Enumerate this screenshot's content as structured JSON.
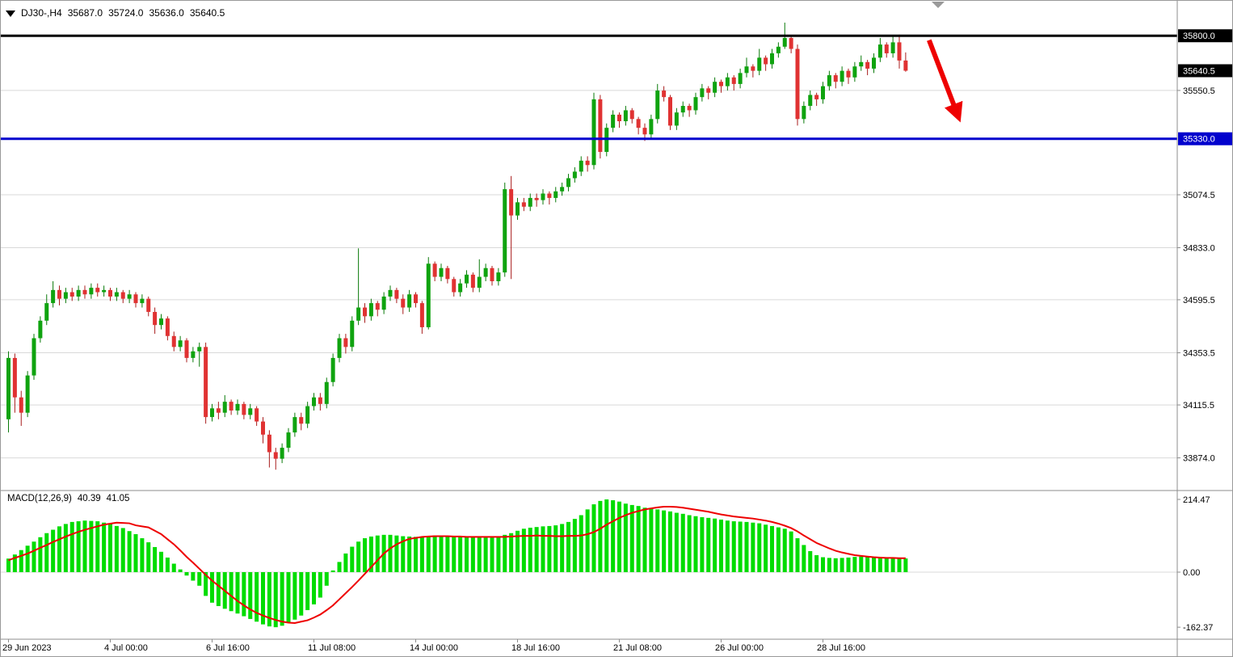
{
  "header": {
    "symbol": "DJ30-,H4",
    "open": "35687.0",
    "high": "35724.0",
    "low": "35636.0",
    "close": "35640.5"
  },
  "macd": {
    "label": "MACD(12,26,9)",
    "value_macd": "40.39",
    "value_signal": "41.05"
  },
  "colors": {
    "up": "#0fa30f",
    "up_wick": "#0a7a0a",
    "down": "#e03232",
    "down_wick": "#a81d1d",
    "grid": "#d9d9d9",
    "separator": "#8c8c8c",
    "axis_text": "#000000",
    "macd_hist": "#00dc00",
    "macd_signal": "#ee0000",
    "resistance": "#000000",
    "support": "#0202cd",
    "arrow": "#ee0000",
    "badge_text": "#ffffff",
    "shift_marker": "#9a9a9a"
  },
  "price_axis": {
    "plain_labels": [
      {
        "text": "35550.5",
        "value": 35550.5
      },
      {
        "text": "35074.5",
        "value": 35074.5
      },
      {
        "text": "34833.0",
        "value": 34833.0
      },
      {
        "text": "34595.5",
        "value": 34595.5
      },
      {
        "text": "34353.5",
        "value": 34353.5
      },
      {
        "text": "34115.5",
        "value": 34115.5
      },
      {
        "text": "33874.0",
        "value": 33874.0
      }
    ],
    "badges": [
      {
        "text": "35800.0",
        "value": 35800.0,
        "bg": "#000000"
      },
      {
        "text": "35640.5",
        "value": 35640.5,
        "bg": "#000000"
      },
      {
        "text": "35330.0",
        "value": 35330.0,
        "bg": "#0202cd"
      }
    ]
  },
  "chart_data": {
    "type": "candlestick",
    "symbol": "DJ30-",
    "timeframe": "H4",
    "current_ohlc": {
      "open": 35687.0,
      "high": 35724.0,
      "low": 35636.0,
      "close": 35640.5
    },
    "price_gridlines": [
      35550.5,
      35074.5,
      34833.0,
      34595.5,
      34353.5,
      34115.5,
      33874.0
    ],
    "hlines": [
      {
        "name": "resistance",
        "price": 35800.0,
        "color": "#000000",
        "label": "35800.0"
      },
      {
        "name": "support",
        "price": 35330.0,
        "color": "#0202cd",
        "label": "35330.0"
      }
    ],
    "annotations": [
      {
        "type": "arrow-down-right",
        "from_bar": 145,
        "from_price": 35780,
        "to_bar": 150,
        "to_price": 35440,
        "color": "#ee0000"
      }
    ],
    "time_labels": [
      {
        "text": "29 Jun 2023",
        "bar": 0
      },
      {
        "text": "4 Jul 00:00",
        "bar": 16
      },
      {
        "text": "6 Jul 16:00",
        "bar": 32
      },
      {
        "text": "11 Jul 08:00",
        "bar": 48
      },
      {
        "text": "14 Jul 00:00",
        "bar": 64
      },
      {
        "text": "18 Jul 16:00",
        "bar": 80
      },
      {
        "text": "21 Jul 08:00",
        "bar": 96
      },
      {
        "text": "26 Jul 00:00",
        "bar": 112
      },
      {
        "text": "28 Jul 16:00",
        "bar": 128
      }
    ],
    "ohlc": [
      [
        34050,
        34360,
        33990,
        34330
      ],
      [
        34330,
        34350,
        34080,
        34150
      ],
      [
        34150,
        34180,
        34020,
        34080
      ],
      [
        34080,
        34270,
        34060,
        34250
      ],
      [
        34250,
        34440,
        34230,
        34420
      ],
      [
        34420,
        34520,
        34400,
        34500
      ],
      [
        34500,
        34620,
        34480,
        34580
      ],
      [
        34580,
        34680,
        34560,
        34640
      ],
      [
        34640,
        34660,
        34570,
        34600
      ],
      [
        34600,
        34650,
        34580,
        34630
      ],
      [
        34630,
        34650,
        34590,
        34610
      ],
      [
        34610,
        34660,
        34590,
        34640
      ],
      [
        34640,
        34660,
        34600,
        34620
      ],
      [
        34620,
        34670,
        34600,
        34650
      ],
      [
        34650,
        34670,
        34610,
        34630
      ],
      [
        34630,
        34660,
        34610,
        34640
      ],
      [
        34640,
        34650,
        34590,
        34610
      ],
      [
        34610,
        34650,
        34590,
        34630
      ],
      [
        34630,
        34640,
        34580,
        34600
      ],
      [
        34600,
        34640,
        34580,
        34620
      ],
      [
        34620,
        34630,
        34560,
        34580
      ],
      [
        34580,
        34620,
        34560,
        34600
      ],
      [
        34600,
        34610,
        34520,
        34540
      ],
      [
        34540,
        34560,
        34440,
        34480
      ],
      [
        34480,
        34530,
        34460,
        34510
      ],
      [
        34510,
        34520,
        34410,
        34430
      ],
      [
        34430,
        34450,
        34360,
        34380
      ],
      [
        34380,
        34430,
        34360,
        34410
      ],
      [
        34410,
        34420,
        34310,
        34330
      ],
      [
        34330,
        34380,
        34310,
        34360
      ],
      [
        34360,
        34400,
        34290,
        34380
      ],
      [
        34380,
        34400,
        34030,
        34060
      ],
      [
        34060,
        34120,
        34040,
        34100
      ],
      [
        34100,
        34130,
        34050,
        34080
      ],
      [
        34080,
        34160,
        34060,
        34130
      ],
      [
        34130,
        34140,
        34070,
        34090
      ],
      [
        34090,
        34140,
        34070,
        34120
      ],
      [
        34120,
        34130,
        34050,
        34070
      ],
      [
        34070,
        34120,
        34050,
        34100
      ],
      [
        34100,
        34110,
        34020,
        34040
      ],
      [
        34040,
        34060,
        33940,
        33980
      ],
      [
        33980,
        34000,
        33830,
        33900
      ],
      [
        33900,
        33920,
        33820,
        33870
      ],
      [
        33870,
        33940,
        33850,
        33920
      ],
      [
        33920,
        34010,
        33900,
        33990
      ],
      [
        33990,
        34080,
        33970,
        34060
      ],
      [
        34060,
        34080,
        34000,
        34030
      ],
      [
        34030,
        34130,
        34010,
        34110
      ],
      [
        34110,
        34170,
        34090,
        34150
      ],
      [
        34150,
        34170,
        34090,
        34120
      ],
      [
        34120,
        34240,
        34100,
        34220
      ],
      [
        34220,
        34350,
        34200,
        34330
      ],
      [
        34330,
        34440,
        34310,
        34420
      ],
      [
        34420,
        34440,
        34350,
        34380
      ],
      [
        34380,
        34520,
        34360,
        34500
      ],
      [
        34500,
        34830,
        34480,
        34560
      ],
      [
        34560,
        34580,
        34490,
        34520
      ],
      [
        34520,
        34600,
        34500,
        34580
      ],
      [
        34580,
        34590,
        34520,
        34550
      ],
      [
        34550,
        34630,
        34530,
        34610
      ],
      [
        34610,
        34660,
        34590,
        34640
      ],
      [
        34640,
        34650,
        34580,
        34600
      ],
      [
        34600,
        34620,
        34530,
        34560
      ],
      [
        34560,
        34640,
        34540,
        34620
      ],
      [
        34620,
        34630,
        34560,
        34580
      ],
      [
        34580,
        34590,
        34440,
        34470
      ],
      [
        34470,
        34790,
        34460,
        34760
      ],
      [
        34760,
        34770,
        34680,
        34700
      ],
      [
        34700,
        34760,
        34680,
        34740
      ],
      [
        34740,
        34750,
        34670,
        34690
      ],
      [
        34690,
        34700,
        34610,
        34630
      ],
      [
        34630,
        34690,
        34610,
        34670
      ],
      [
        34670,
        34730,
        34650,
        34710
      ],
      [
        34710,
        34720,
        34630,
        34650
      ],
      [
        34650,
        34780,
        34630,
        34700
      ],
      [
        34700,
        34760,
        34680,
        34740
      ],
      [
        34740,
        34750,
        34660,
        34680
      ],
      [
        34680,
        34740,
        34660,
        34720
      ],
      [
        34720,
        35130,
        34700,
        35100
      ],
      [
        35100,
        35160,
        34690,
        34980
      ],
      [
        34980,
        35060,
        34960,
        35040
      ],
      [
        35040,
        35060,
        35000,
        35020
      ],
      [
        35020,
        35080,
        35000,
        35060
      ],
      [
        35060,
        35080,
        35020,
        35050
      ],
      [
        35050,
        35100,
        35030,
        35080
      ],
      [
        35080,
        35090,
        35030,
        35060
      ],
      [
        35060,
        35110,
        35040,
        35090
      ],
      [
        35090,
        35130,
        35070,
        35110
      ],
      [
        35110,
        35170,
        35090,
        35150
      ],
      [
        35150,
        35200,
        35130,
        35180
      ],
      [
        35180,
        35250,
        35160,
        35230
      ],
      [
        35230,
        35250,
        35180,
        35210
      ],
      [
        35210,
        35540,
        35190,
        35510
      ],
      [
        35510,
        35530,
        35240,
        35270
      ],
      [
        35270,
        35400,
        35250,
        35380
      ],
      [
        35380,
        35460,
        35360,
        35440
      ],
      [
        35440,
        35450,
        35380,
        35410
      ],
      [
        35410,
        35480,
        35390,
        35460
      ],
      [
        35460,
        35470,
        35400,
        35420
      ],
      [
        35420,
        35430,
        35350,
        35380
      ],
      [
        35380,
        35400,
        35320,
        35350
      ],
      [
        35350,
        35440,
        35330,
        35420
      ],
      [
        35420,
        35580,
        35400,
        35550
      ],
      [
        35550,
        35570,
        35500,
        35520
      ],
      [
        35520,
        35530,
        35370,
        35390
      ],
      [
        35390,
        35470,
        35370,
        35450
      ],
      [
        35450,
        35500,
        35430,
        35480
      ],
      [
        35480,
        35490,
        35430,
        35460
      ],
      [
        35460,
        35540,
        35440,
        35520
      ],
      [
        35520,
        35580,
        35500,
        35560
      ],
      [
        35560,
        35570,
        35510,
        35540
      ],
      [
        35540,
        35610,
        35520,
        35590
      ],
      [
        35590,
        35600,
        35540,
        35570
      ],
      [
        35570,
        35630,
        35550,
        35610
      ],
      [
        35610,
        35620,
        35550,
        35580
      ],
      [
        35580,
        35650,
        35560,
        35630
      ],
      [
        35630,
        35700,
        35610,
        35660
      ],
      [
        35660,
        35670,
        35610,
        35640
      ],
      [
        35640,
        35740,
        35620,
        35700
      ],
      [
        35700,
        35710,
        35640,
        35670
      ],
      [
        35670,
        35740,
        35650,
        35720
      ],
      [
        35720,
        35770,
        35700,
        35750
      ],
      [
        35750,
        35860,
        35740,
        35790
      ],
      [
        35790,
        35800,
        35720,
        35740
      ],
      [
        35740,
        35760,
        35390,
        35420
      ],
      [
        35420,
        35500,
        35400,
        35480
      ],
      [
        35480,
        35550,
        35460,
        35530
      ],
      [
        35530,
        35540,
        35480,
        35510
      ],
      [
        35510,
        35590,
        35490,
        35570
      ],
      [
        35570,
        35640,
        35550,
        35620
      ],
      [
        35620,
        35630,
        35560,
        35590
      ],
      [
        35590,
        35660,
        35570,
        35640
      ],
      [
        35640,
        35650,
        35580,
        35610
      ],
      [
        35610,
        35680,
        35590,
        35660
      ],
      [
        35660,
        35710,
        35640,
        35680
      ],
      [
        35680,
        35690,
        35620,
        35650
      ],
      [
        35650,
        35720,
        35630,
        35700
      ],
      [
        35700,
        35790,
        35680,
        35760
      ],
      [
        35760,
        35770,
        35700,
        35720
      ],
      [
        35720,
        35800,
        35700,
        35770
      ],
      [
        35770,
        35805,
        35650,
        35687
      ],
      [
        35687,
        35724,
        35636,
        35640.5
      ]
    ],
    "macd_panel": {
      "type": "histogram+line",
      "params": "12,26,9",
      "axis_labels": [
        {
          "text": "214.47",
          "value": 214.47
        },
        {
          "text": "0.00",
          "value": 0
        },
        {
          "text": "-162.37",
          "value": -162.37
        }
      ],
      "hist": [
        40,
        52,
        65,
        78,
        90,
        103,
        115,
        125,
        135,
        142,
        148,
        150,
        152,
        151,
        150,
        146,
        142,
        136,
        130,
        121,
        112,
        100,
        88,
        74,
        60,
        43,
        25,
        8,
        -10,
        -25,
        -40,
        -70,
        -90,
        -100,
        -108,
        -115,
        -122,
        -130,
        -138,
        -146,
        -154,
        -160,
        -162.37,
        -158,
        -150,
        -140,
        -128,
        -112,
        -95,
        -75,
        -40,
        5,
        30,
        55,
        75,
        90,
        100,
        105,
        108,
        110,
        110,
        108,
        106,
        105,
        104,
        103,
        106,
        108,
        108,
        107,
        106,
        105,
        104,
        103,
        103,
        102,
        102,
        103,
        110,
        115,
        122,
        128,
        131,
        133,
        135,
        136,
        138,
        142,
        148,
        157,
        168,
        185,
        200,
        210,
        214.47,
        212,
        208,
        202,
        198,
        195,
        190,
        187,
        185,
        182,
        179,
        175,
        172,
        168,
        165,
        162,
        160,
        158,
        155,
        152,
        150,
        149,
        148,
        146,
        144,
        140,
        136,
        132,
        128,
        120,
        100,
        80,
        62,
        50,
        44,
        42,
        41,
        42,
        43,
        45,
        46,
        45,
        44,
        44,
        43,
        42,
        41,
        40.39
      ],
      "signal": [
        35,
        42,
        48,
        55,
        63,
        72,
        80,
        89,
        97,
        105,
        112,
        119,
        125,
        130,
        135,
        140,
        143,
        146,
        145,
        144,
        138,
        135,
        132,
        122,
        112,
        97,
        82,
        64,
        45,
        28,
        10,
        -8,
        -25,
        -40,
        -55,
        -70,
        -85,
        -98,
        -110,
        -120,
        -128,
        -135,
        -141,
        -146,
        -149,
        -150,
        -146,
        -142,
        -134,
        -125,
        -112,
        -98,
        -80,
        -62,
        -44,
        -25,
        -5,
        15,
        35,
        55,
        70,
        82,
        91,
        98,
        101,
        104,
        105,
        106,
        106,
        106,
        105,
        105,
        104,
        104,
        104,
        104,
        104,
        104,
        104,
        105,
        106,
        107,
        107,
        108,
        107,
        107,
        106,
        106,
        107,
        107,
        108,
        112,
        118,
        128,
        140,
        150,
        160,
        168,
        175,
        180,
        185,
        188,
        191,
        193,
        193,
        192,
        190,
        187,
        184,
        181,
        178,
        174,
        170,
        167,
        164,
        162,
        160,
        158,
        155,
        152,
        148,
        143,
        137,
        130,
        120,
        108,
        97,
        86,
        78,
        70,
        63,
        58,
        54,
        50,
        48,
        46,
        44,
        43,
        42,
        42,
        41,
        41.05
      ]
    }
  }
}
